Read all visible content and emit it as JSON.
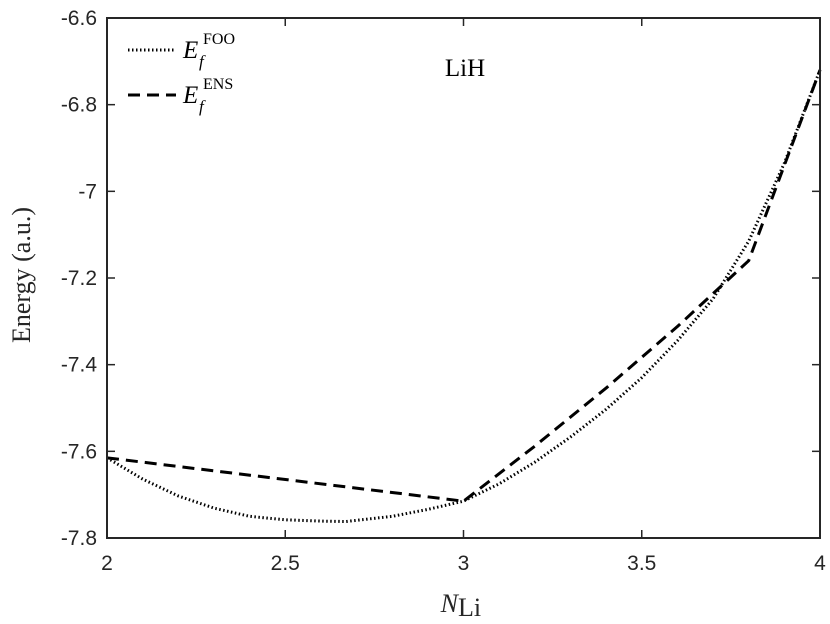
{
  "chart_data": {
    "type": "line",
    "xlabel": "N",
    "xlabel_sub": "Li",
    "ylabel": "Energy (a.u.)",
    "xlim": [
      2,
      4
    ],
    "ylim": [
      -7.8,
      -6.6
    ],
    "xticks": [
      2,
      2.5,
      3,
      3.5,
      4
    ],
    "xtick_labels": [
      "2",
      "2.5",
      "3",
      "3.5",
      "4"
    ],
    "yticks": [
      -7.8,
      -7.6,
      -7.4,
      -7.2,
      -7.0,
      -6.8,
      -6.6
    ],
    "ytick_labels": [
      "-7.8",
      "-7.6",
      "-7.4",
      "-7.2",
      "-7",
      "-6.8",
      "-6.6"
    ],
    "grid": false,
    "legend_position": "top-left",
    "annotation": "LiH",
    "series": [
      {
        "name": "E_f^FOO",
        "name_base": "E",
        "name_sub": "f",
        "name_sup": "FOO",
        "line_style": "dotted",
        "color": "#000000",
        "x": [
          2.0,
          2.1,
          2.2,
          2.3,
          2.4,
          2.5,
          2.6,
          2.67,
          2.8,
          2.9,
          3.0,
          3.1,
          3.2,
          3.3,
          3.4,
          3.5,
          3.6,
          3.7,
          3.8,
          3.9,
          4.0
        ],
        "y": [
          -7.615,
          -7.664,
          -7.703,
          -7.731,
          -7.75,
          -7.758,
          -7.761,
          -7.762,
          -7.75,
          -7.734,
          -7.715,
          -7.675,
          -7.625,
          -7.567,
          -7.503,
          -7.43,
          -7.345,
          -7.248,
          -7.115,
          -6.935,
          -6.72
        ]
      },
      {
        "name": "E_f^ENS",
        "name_base": "E",
        "name_sub": "f",
        "name_sup": "ENS",
        "line_style": "dashed",
        "color": "#000000",
        "x": [
          2.0,
          3.0,
          3.2,
          3.4,
          3.6,
          3.8,
          4.0
        ],
        "y": [
          -7.615,
          -7.715,
          -7.588,
          -7.454,
          -7.312,
          -7.16,
          -6.72
        ]
      }
    ]
  }
}
